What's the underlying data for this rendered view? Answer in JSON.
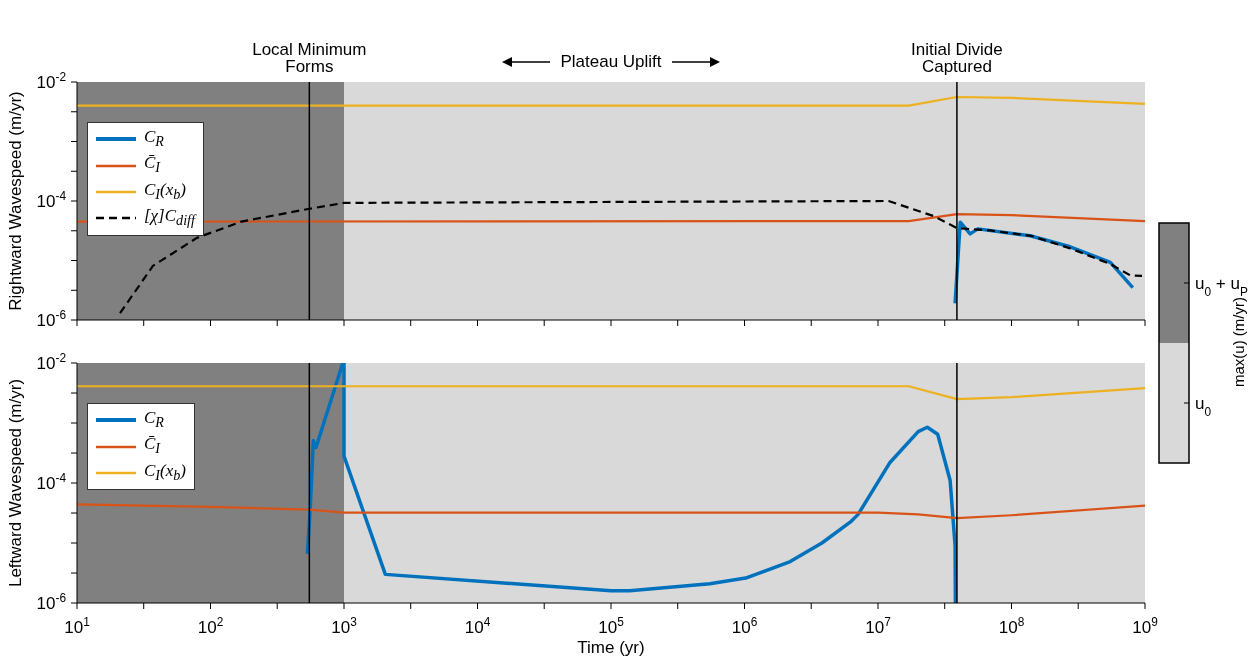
{
  "chart_data": [
    {
      "type": "line",
      "ylabel": "Rightward Wavespeed (m/yr)",
      "log": "xy",
      "xlim": [
        10,
        1000000000
      ],
      "ylim": [
        1e-06,
        0.01
      ],
      "xticks": [
        {
          "value": 10,
          "label": null
        },
        {
          "value": 31.6,
          "label": null
        },
        {
          "value": 100,
          "label": null
        },
        {
          "value": 316,
          "label": null
        },
        {
          "value": 1000,
          "label": null
        },
        {
          "value": 3160,
          "label": null
        },
        {
          "value": 10000,
          "label": null
        },
        {
          "value": 31600,
          "label": null
        },
        {
          "value": 100000,
          "label": null
        },
        {
          "value": 316000,
          "label": null
        },
        {
          "value": 1000000,
          "label": null
        },
        {
          "value": 3160000,
          "label": null
        },
        {
          "value": 10000000,
          "label": null
        },
        {
          "value": 31600000,
          "label": null
        },
        {
          "value": 100000000,
          "label": null
        },
        {
          "value": 316000000,
          "label": null
        },
        {
          "value": 1000000000,
          "label": null
        }
      ],
      "yticks": [
        {
          "value": 1e-06,
          "label": "10$^{-6}$"
        },
        {
          "value": 3.16e-06,
          "label": null
        },
        {
          "value": 1e-05,
          "label": null
        },
        {
          "value": 3.16e-05,
          "label": null
        },
        {
          "value": 0.0001,
          "label": "10$^{-4}$"
        },
        {
          "value": 0.000316,
          "label": null
        },
        {
          "value": 0.001,
          "label": null
        },
        {
          "value": 0.00316,
          "label": null
        },
        {
          "value": 0.01,
          "label": "10$^{-2}$"
        }
      ],
      "tick_labels": "y",
      "legend": "top left",
      "bands": [
        {
          "axis": "x",
          "from": 10,
          "to": 1000,
          "color": "#808080"
        },
        {
          "axis": "x",
          "from": 1000,
          "to": 1000000000,
          "color": "#d9d9d9"
        }
      ],
      "ref_lines": [
        {
          "axis": "x",
          "value": 550,
          "label": "Local Minimum Forms",
          "color": "#000000"
        },
        {
          "axis": "x",
          "value": 39000000,
          "label": "Initial Divide Captured",
          "color": "#000000"
        }
      ],
      "annotations": [
        "Plateau Uplift",
        "u$_{0}$ + u$_{P}$",
        "u$_{0}$"
      ],
      "clabel": "max(u) (m/yr)",
      "series": [
        {
          "name": "C$_{R}$",
          "color": "#0072bd",
          "x": [
            37800000,
            41300000,
            49000000,
            56000000,
            138000000,
            275000000,
            550000000,
            810000000
          ],
          "values": [
            1.9e-06,
            4.4e-05,
            2.8e-05,
            3.4e-05,
            2.6e-05,
            1.7e-05,
            9.3e-06,
            3.5e-06
          ]
        },
        {
          "name": "C̄$_{I}$",
          "color": "#d95319",
          "x": [
            10,
            17000000,
            39000000,
            100000000,
            1000000000
          ],
          "values": [
            4.5e-05,
            4.6e-05,
            6e-05,
            5.8e-05,
            4.6e-05
          ]
        },
        {
          "name": "C$_{I}$(x$_{b}$)",
          "color": "#edb120",
          "x": [
            10,
            17000000,
            39000000,
            100000000,
            1000000000
          ],
          "values": [
            0.004,
            0.004,
            0.0056,
            0.0054,
            0.0043
          ]
        },
        {
          "name": "[χ]C$_{diff}$",
          "color": "#000000",
          "line_style": "dashed",
          "x": [
            21,
            37,
            79,
            170,
            550,
            1000,
            12000000,
            26000000,
            39000000,
            69000000,
            140000000,
            275000000,
            550000000,
            780000000,
            950000000
          ],
          "values": [
            1.3e-06,
            8.1e-06,
            2.4e-05,
            4.5e-05,
            7.4e-05,
            9.3e-05,
            0.0001,
            5.6e-05,
            3.5e-05,
            3.2e-05,
            2.6e-05,
            1.6e-05,
            8.7e-06,
            5.6e-06,
            5.5e-06
          ]
        }
      ]
    },
    {
      "type": "line",
      "xlabel": "Time (yr)",
      "ylabel": "Leftward Wavespeed (m/yr)",
      "log": "xy",
      "xlim": [
        10,
        1000000000
      ],
      "ylim": [
        1e-06,
        0.01
      ],
      "xticks": [
        {
          "value": 10,
          "label": "10$^{1}$"
        },
        {
          "value": 31.6,
          "label": null
        },
        {
          "value": 100,
          "label": "10$^{2}$"
        },
        {
          "value": 316,
          "label": null
        },
        {
          "value": 1000,
          "label": "10$^{3}$"
        },
        {
          "value": 3160,
          "label": null
        },
        {
          "value": 10000,
          "label": "10$^{4}$"
        },
        {
          "value": 31600,
          "label": null
        },
        {
          "value": 100000,
          "label": "10$^{5}$"
        },
        {
          "value": 316000,
          "label": null
        },
        {
          "value": 1000000,
          "label": "10$^{6}$"
        },
        {
          "value": 3160000,
          "label": null
        },
        {
          "value": 10000000,
          "label": "10$^{7}$"
        },
        {
          "value": 31600000,
          "label": null
        },
        {
          "value": 100000000,
          "label": "10$^{8}$"
        },
        {
          "value": 316000000,
          "label": null
        },
        {
          "value": 1000000000,
          "label": "10$^{9}$"
        }
      ],
      "yticks": [
        {
          "value": 1e-06,
          "label": "10$^{-6}$"
        },
        {
          "value": 3.16e-06,
          "label": null
        },
        {
          "value": 1e-05,
          "label": null
        },
        {
          "value": 3.16e-05,
          "label": null
        },
        {
          "value": 0.0001,
          "label": "10$^{-4}$"
        },
        {
          "value": 0.000316,
          "label": null
        },
        {
          "value": 0.001,
          "label": null
        },
        {
          "value": 0.00316,
          "label": null
        },
        {
          "value": 0.01,
          "label": "10$^{-2}$"
        }
      ],
      "legend": "top left",
      "bands": [
        {
          "axis": "x",
          "from": 10,
          "to": 1000,
          "color": "#808080"
        },
        {
          "axis": "x",
          "from": 1000,
          "to": 1000000000,
          "color": "#d9d9d9"
        }
      ],
      "ref_lines": [
        {
          "axis": "x",
          "value": 550,
          "color": "#000000"
        },
        {
          "axis": "x",
          "value": 39000000,
          "color": "#000000"
        }
      ],
      "series": [
        {
          "name": "C$_{R}$",
          "color": "#0072bd",
          "x": [
            532,
            558,
            589,
            617,
            980,
            1000,
            1000,
            2040,
            100000,
            138000,
            550000,
            1020000,
            2200000,
            3800000,
            6300000,
            7100000,
            12300000,
            20000000,
            23400000,
            28000000,
            34700000,
            37800000,
            38000000
          ],
          "values": [
            6.6e-06,
            3.6e-05,
            0.00051,
            0.00039,
            0.01,
            0.01,
            0.00028,
            3e-06,
            1.6e-06,
            1.6e-06,
            2.1e-06,
            2.6e-06,
            4.9e-06,
            1e-05,
            2.3e-05,
            3e-05,
            0.00022,
            0.00072,
            0.00085,
            0.00065,
            0.00011,
            9e-06,
            1e-06
          ]
        },
        {
          "name": "C̄$_{I}$",
          "color": "#d95319",
          "x": [
            10,
            100,
            550,
            1000,
            10000000,
            20000000,
            39000000,
            100000000,
            1000000000
          ],
          "values": [
            4.4e-05,
            4e-05,
            3.6e-05,
            3.2e-05,
            3.2e-05,
            3e-05,
            2.6e-05,
            2.9e-05,
            4.2e-05
          ]
        },
        {
          "name": "C$_{I}$(x$_{b}$)",
          "color": "#edb120",
          "x": [
            10,
            17000000,
            39000000,
            100000000,
            1000000000
          ],
          "values": [
            0.0041,
            0.0041,
            0.0025,
            0.0027,
            0.0038
          ]
        }
      ]
    }
  ]
}
